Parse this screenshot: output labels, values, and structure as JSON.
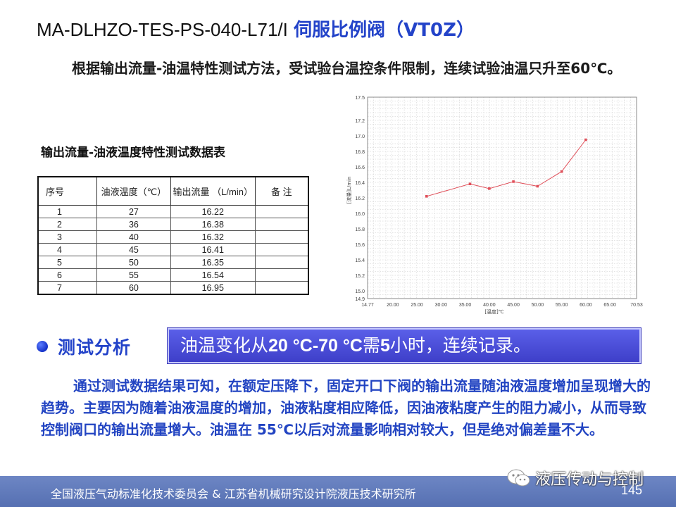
{
  "slide": {
    "title_prefix": "MA-DLHZO-TES-PS-040-L71/I",
    "title_cn": "伺服比例阀（VT0Z）",
    "intro": "根据输出流量-油温特性测试方法，受试验台温控条件限制，连续试验油温只升至60℃。",
    "table_caption": "输出流量-油液温度特性测试数据表",
    "table": {
      "headers": [
        "序号",
        "油液温度（℃）",
        "输出流量 （L/min）",
        "备 注"
      ],
      "rows": [
        [
          "1",
          "27",
          "16.22",
          ""
        ],
        [
          "2",
          "36",
          "16.38",
          ""
        ],
        [
          "3",
          "40",
          "16.32",
          ""
        ],
        [
          "4",
          "45",
          "16.41",
          ""
        ],
        [
          "5",
          "50",
          "16.35",
          ""
        ],
        [
          "6",
          "55",
          "16.54",
          ""
        ],
        [
          "7",
          "60",
          "16.95",
          ""
        ]
      ]
    },
    "section_label": "测试分析",
    "banner": {
      "pre": "油温变化从",
      "range": "20 °C-70 °C",
      "mid": "需",
      "hours": "5",
      "post": "小时，连续记录。"
    },
    "analysis": "通过测试数据结果可知，在额定压降下，固定开口下阀的输出流量随油液温度增加呈现增大的趋势。主要因为随着油液温度的增加，油液粘度相应降低，因油液粘度产生的阻力减小，从而导致控制阀口的输出流量增大。油温在 55℃以后对流量影响相对较大，但是绝对偏差量不大。",
    "footer_org": "全国液压气动标准化技术委员会 & 江苏省机械研究设计院液压技术研究所",
    "page_number": "145",
    "watermark": "液压传动与控制"
  },
  "chart_data": {
    "type": "line",
    "x": [
      27,
      36,
      40,
      45,
      50,
      55,
      60
    ],
    "values": [
      16.22,
      16.38,
      16.32,
      16.41,
      16.35,
      16.54,
      16.95
    ],
    "xlabel": "[温度]℃",
    "ylabel": "[流量]L/min",
    "xlim": [
      14.77,
      70.53
    ],
    "ylim": [
      14.9,
      17.5
    ],
    "x_ticks": [
      "14.77",
      "20.00",
      "25.00",
      "30.00",
      "35.00",
      "40.00",
      "45.00",
      "50.00",
      "55.00",
      "60.00",
      "65.00",
      "70.53"
    ],
    "x_tick_values": [
      14.77,
      20,
      25,
      30,
      35,
      40,
      45,
      50,
      55,
      60,
      65,
      70.53
    ],
    "y_ticks": [
      "14.9",
      "15.0",
      "15.2",
      "15.4",
      "15.6",
      "15.8",
      "16.0",
      "16.2",
      "16.4",
      "16.6",
      "16.8",
      "17.0",
      "17.2",
      "17.5"
    ],
    "y_tick_values": [
      14.9,
      15.0,
      15.2,
      15.4,
      15.6,
      15.8,
      16.0,
      16.2,
      16.4,
      16.6,
      16.8,
      17.0,
      17.2,
      17.5
    ],
    "grid": true,
    "series_color": "#e0505a"
  }
}
